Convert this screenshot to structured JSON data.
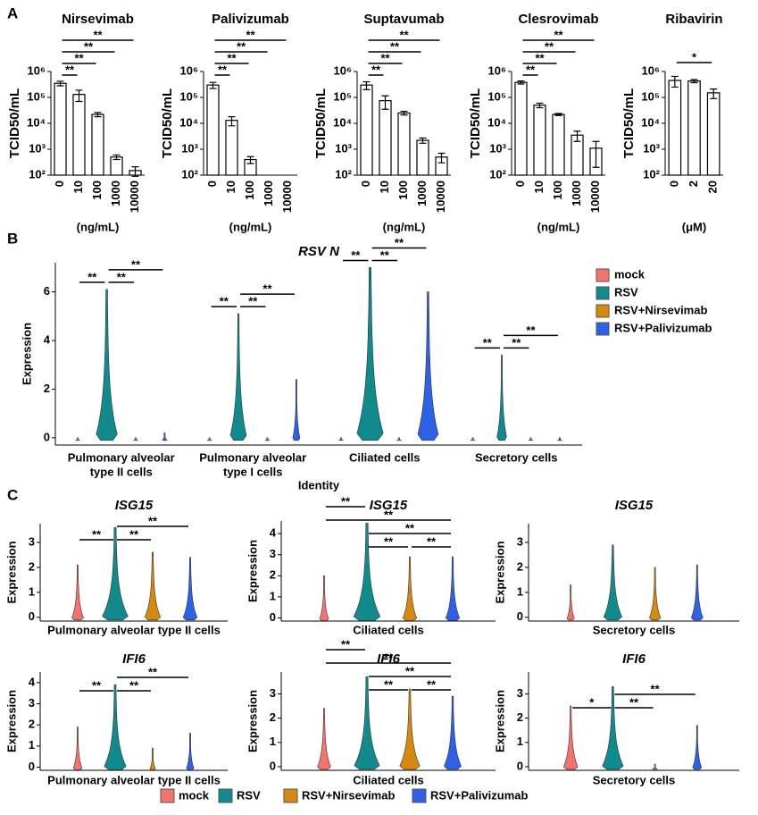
{
  "panel_labels": [
    "A",
    "B",
    "C"
  ],
  "chart_data": [
    {
      "type": "bar",
      "title": "Nirsevimab",
      "y_label": "TCID50/mL",
      "x_label": "(ng/mL)",
      "categories": [
        "0",
        "10",
        "100",
        "1000",
        "10000"
      ],
      "values": [
        350000,
        130000,
        22000,
        500,
        150
      ],
      "errors": [
        70000,
        60000,
        4000,
        100,
        60
      ],
      "yscale": "log",
      "ylim": [
        100,
        1000000
      ],
      "yticks": [
        {
          "value": 100,
          "label": "10²"
        },
        {
          "value": 1000,
          "label": "10³"
        },
        {
          "value": 10000,
          "label": "10⁴"
        },
        {
          "value": 100000,
          "label": "10⁵"
        },
        {
          "value": 1000000,
          "label": "10⁶"
        }
      ],
      "color": "#ffffff",
      "comparisons": [
        {
          "groups": [
            0,
            1
          ],
          "label": "**"
        },
        {
          "groups": [
            0,
            2
          ],
          "label": "**"
        },
        {
          "groups": [
            0,
            3
          ],
          "label": "**"
        },
        {
          "groups": [
            0,
            4
          ],
          "label": "**"
        }
      ]
    },
    {
      "type": "bar",
      "title": "Palivizumab",
      "y_label": "TCID50/mL",
      "x_label": "(ng/mL)",
      "categories": [
        "0",
        "10",
        "100",
        "1000",
        "10000"
      ],
      "values": [
        300000,
        13000,
        400,
        null,
        null
      ],
      "errors": [
        80000,
        5000,
        120,
        null,
        null
      ],
      "yscale": "log",
      "ylim": [
        100,
        1000000
      ],
      "yticks": [
        {
          "value": 100,
          "label": "10²"
        },
        {
          "value": 1000,
          "label": "10³"
        },
        {
          "value": 10000,
          "label": "10⁴"
        },
        {
          "value": 100000,
          "label": "10⁵"
        },
        {
          "value": 1000000,
          "label": "10⁶"
        }
      ],
      "color": "#ffffff",
      "comparisons": [
        {
          "groups": [
            0,
            1
          ],
          "label": "**"
        },
        {
          "groups": [
            0,
            2
          ],
          "label": "**"
        },
        {
          "groups": [
            0,
            3
          ],
          "label": "**"
        },
        {
          "groups": [
            0,
            4
          ],
          "label": "**"
        }
      ]
    },
    {
      "type": "bar",
      "title": "Suptavumab",
      "y_label": "TCID50/mL",
      "x_label": "(ng/mL)",
      "categories": [
        "0",
        "10",
        "100",
        "1000",
        "10000"
      ],
      "values": [
        300000,
        75000,
        25000,
        2200,
        500
      ],
      "errors": [
        100000,
        40000,
        4000,
        500,
        200
      ],
      "yscale": "log",
      "ylim": [
        100,
        1000000
      ],
      "yticks": [
        {
          "value": 100,
          "label": "10²"
        },
        {
          "value": 1000,
          "label": "10³"
        },
        {
          "value": 10000,
          "label": "10⁴"
        },
        {
          "value": 100000,
          "label": "10⁵"
        },
        {
          "value": 1000000,
          "label": "10⁶"
        }
      ],
      "color": "#ffffff",
      "comparisons": [
        {
          "groups": [
            0,
            1
          ],
          "label": "**"
        },
        {
          "groups": [
            0,
            2
          ],
          "label": "**"
        },
        {
          "groups": [
            0,
            3
          ],
          "label": "**"
        },
        {
          "groups": [
            0,
            4
          ],
          "label": "**"
        }
      ]
    },
    {
      "type": "bar",
      "title": "Clesrovimab",
      "y_label": "TCID50/mL",
      "x_label": "(ng/mL)",
      "categories": [
        "0",
        "10",
        "100",
        "1000",
        "10000"
      ],
      "values": [
        380000,
        50000,
        22000,
        3500,
        1100
      ],
      "errors": [
        50000,
        10000,
        2000,
        1500,
        900
      ],
      "yscale": "log",
      "ylim": [
        100,
        1000000
      ],
      "yticks": [
        {
          "value": 100,
          "label": "10²"
        },
        {
          "value": 1000,
          "label": "10³"
        },
        {
          "value": 10000,
          "label": "10⁴"
        },
        {
          "value": 100000,
          "label": "10⁵"
        },
        {
          "value": 1000000,
          "label": "10⁶"
        }
      ],
      "color": "#ffffff",
      "comparisons": [
        {
          "groups": [
            0,
            1
          ],
          "label": "**"
        },
        {
          "groups": [
            0,
            2
          ],
          "label": "**"
        },
        {
          "groups": [
            0,
            3
          ],
          "label": "**"
        },
        {
          "groups": [
            0,
            4
          ],
          "label": "**"
        }
      ]
    },
    {
      "type": "bar",
      "title": "Ribavirin",
      "y_label": "TCID50/mL",
      "x_label": "(μM)",
      "categories": [
        "0",
        "2",
        "20"
      ],
      "values": [
        450000,
        430000,
        150000
      ],
      "errors": [
        200000,
        60000,
        60000
      ],
      "yscale": "log",
      "ylim": [
        100,
        1000000
      ],
      "yticks": [
        {
          "value": 100,
          "label": "10²"
        },
        {
          "value": 1000,
          "label": "10³"
        },
        {
          "value": 10000,
          "label": "10⁴"
        },
        {
          "value": 100000,
          "label": "10⁵"
        },
        {
          "value": 1000000,
          "label": "10⁶"
        }
      ],
      "color": "#ffffff",
      "comparisons": [
        {
          "groups": [
            0,
            2
          ],
          "label": "*"
        }
      ]
    },
    {
      "type": "violin",
      "title": "RSV N",
      "title_italic": true,
      "y_label": "Expression",
      "x_label": "Identity",
      "legend": "right",
      "categories": [
        [
          "Pulmonary alveolar",
          "type II cells"
        ],
        [
          "Pulmonary alveolar",
          "type I cells"
        ],
        [
          "Ciliated cells"
        ],
        [
          "Secretory cells"
        ]
      ],
      "ylim": [
        -0.3,
        7.2
      ],
      "yticks": [
        0,
        2,
        4,
        6
      ],
      "series": [
        {
          "name": "mock",
          "color": "#f4736e",
          "values": [
            0,
            0,
            0,
            0
          ]
        },
        {
          "name": "RSV",
          "color": "#108a8c",
          "values": [
            6.1,
            5.1,
            7.0,
            3.4
          ]
        },
        {
          "name": "RSV+Nirsevimab",
          "color": "#d7880e",
          "values": [
            0,
            0,
            0,
            0
          ]
        },
        {
          "name": "RSV+Palivizumab",
          "color": "#2d62e6",
          "values": [
            0.2,
            2.4,
            6.0,
            0
          ]
        }
      ],
      "comparisons": [
        [
          {
            "groups": [
              0,
              1
            ],
            "label": "**"
          },
          {
            "groups": [
              1,
              2
            ],
            "label": "**"
          },
          {
            "groups": [
              1,
              3
            ],
            "label": "**"
          }
        ],
        [
          {
            "groups": [
              0,
              1
            ],
            "label": "**"
          },
          {
            "groups": [
              1,
              2
            ],
            "label": "**"
          },
          {
            "groups": [
              1,
              3
            ],
            "label": "**"
          }
        ],
        [
          {
            "groups": [
              0,
              1
            ],
            "label": "**"
          },
          {
            "groups": [
              1,
              2
            ],
            "label": "**"
          },
          {
            "groups": [
              1,
              3
            ],
            "label": "**"
          }
        ],
        [
          {
            "groups": [
              0,
              1
            ],
            "label": "**"
          },
          {
            "groups": [
              1,
              2
            ],
            "label": "**"
          },
          {
            "groups": [
              1,
              3
            ],
            "label": "**"
          }
        ]
      ]
    },
    {
      "type": "violin",
      "title": "ISG15",
      "title_italic": true,
      "y_label": "Expression",
      "x_label": "Pulmonary alveolar type II cells",
      "ylim": [
        -0.15,
        3.75
      ],
      "yticks": [
        0,
        1,
        2,
        3
      ],
      "series": [
        {
          "color": "#f4736e",
          "values": [
            2.1
          ]
        },
        {
          "color": "#108a8c",
          "values": [
            3.6
          ]
        },
        {
          "color": "#d7880e",
          "values": [
            2.6
          ]
        },
        {
          "color": "#2d62e6",
          "values": [
            2.4
          ]
        }
      ],
      "comparisons": [
        {
          "groups": [
            0,
            1
          ],
          "label": "**"
        },
        {
          "groups": [
            1,
            2
          ],
          "label": "**"
        },
        {
          "groups": [
            1,
            3
          ],
          "label": "**"
        }
      ]
    },
    {
      "type": "violin",
      "title": "ISG15",
      "title_italic": true,
      "y_label": "Expression",
      "x_label": "Ciliated cells",
      "ylim": [
        -0.15,
        4.6
      ],
      "yticks": [
        0,
        1,
        2,
        3,
        4
      ],
      "series": [
        {
          "color": "#f4736e",
          "values": [
            2.0
          ]
        },
        {
          "color": "#108a8c",
          "values": [
            4.5
          ]
        },
        {
          "color": "#d7880e",
          "values": [
            2.9
          ]
        },
        {
          "color": "#2d62e6",
          "values": [
            2.9
          ]
        }
      ],
      "comparisons": [
        {
          "groups": [
            1,
            2
          ],
          "label": "**"
        },
        {
          "groups": [
            2,
            3
          ],
          "label": "**"
        },
        {
          "groups": [
            1,
            3
          ],
          "label": "**"
        },
        {
          "groups": [
            0,
            3
          ],
          "label": "**"
        },
        {
          "groups": [
            0,
            1
          ],
          "label": "**"
        }
      ]
    },
    {
      "type": "violin",
      "title": "ISG15",
      "title_italic": true,
      "y_label": "Expression",
      "x_label": "Secretory cells",
      "ylim": [
        -0.15,
        3.75
      ],
      "yticks": [
        0,
        1,
        2,
        3
      ],
      "series": [
        {
          "color": "#f4736e",
          "values": [
            1.3
          ]
        },
        {
          "color": "#108a8c",
          "values": [
            2.9
          ]
        },
        {
          "color": "#d7880e",
          "values": [
            2.0
          ]
        },
        {
          "color": "#2d62e6",
          "values": [
            2.1
          ]
        }
      ]
    },
    {
      "type": "violin",
      "title": "IFI6",
      "title_italic": true,
      "y_label": "Expression",
      "x_label": "Pulmonary alveolar type II cells",
      "ylim": [
        -0.15,
        4.5
      ],
      "yticks": [
        0,
        1,
        2,
        3,
        4
      ],
      "series": [
        {
          "color": "#f4736e",
          "values": [
            1.9
          ]
        },
        {
          "color": "#108a8c",
          "values": [
            3.9
          ]
        },
        {
          "color": "#d7880e",
          "values": [
            0.9
          ]
        },
        {
          "color": "#2d62e6",
          "values": [
            1.6
          ]
        }
      ],
      "comparisons": [
        {
          "groups": [
            0,
            1
          ],
          "label": "**"
        },
        {
          "groups": [
            1,
            2
          ],
          "label": "**"
        },
        {
          "groups": [
            1,
            3
          ],
          "label": "**"
        }
      ]
    },
    {
      "type": "violin",
      "title": "IFI6",
      "title_italic": true,
      "y_label": "Expression",
      "x_label": "Ciliated cells",
      "ylim": [
        -0.15,
        3.9
      ],
      "yticks": [
        0,
        1,
        2,
        3
      ],
      "series": [
        {
          "color": "#f4736e",
          "values": [
            2.4
          ]
        },
        {
          "color": "#108a8c",
          "values": [
            3.7
          ]
        },
        {
          "color": "#d7880e",
          "values": [
            3.2
          ]
        },
        {
          "color": "#2d62e6",
          "values": [
            2.9
          ]
        }
      ],
      "comparisons": [
        {
          "groups": [
            1,
            2
          ],
          "label": "**"
        },
        {
          "groups": [
            2,
            3
          ],
          "label": "**"
        },
        {
          "groups": [
            1,
            3
          ],
          "label": "**"
        },
        {
          "groups": [
            0,
            3
          ],
          "label": "**"
        },
        {
          "groups": [
            0,
            1
          ],
          "label": "**"
        }
      ]
    },
    {
      "type": "violin",
      "title": "IFI6",
      "title_italic": true,
      "y_label": "Expression",
      "x_label": "Secretory cells",
      "ylim": [
        -0.15,
        3.9
      ],
      "yticks": [
        0,
        1,
        2,
        3
      ],
      "series": [
        {
          "color": "#f4736e",
          "values": [
            2.5
          ]
        },
        {
          "color": "#108a8c",
          "values": [
            3.3
          ]
        },
        {
          "color": "#d7880e",
          "values": [
            0.1
          ]
        },
        {
          "color": "#2d62e6",
          "values": [
            1.7
          ]
        }
      ],
      "comparisons": [
        {
          "groups": [
            0,
            1
          ],
          "label": "*"
        },
        {
          "groups": [
            1,
            2
          ],
          "label": "**"
        },
        {
          "groups": [
            1,
            3
          ],
          "label": "**"
        }
      ]
    }
  ],
  "legend": {
    "entries": [
      {
        "name": "mock",
        "color": "#f4736e"
      },
      {
        "name": "RSV",
        "color": "#108a8c"
      },
      {
        "name": "RSV+Nirsevimab",
        "color": "#d7880e"
      },
      {
        "name": "RSV+Palivizumab",
        "color": "#2d62e6"
      }
    ]
  }
}
